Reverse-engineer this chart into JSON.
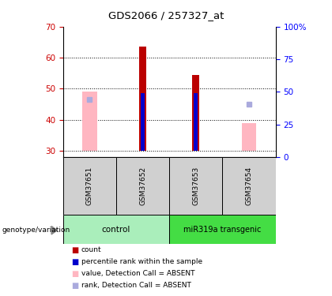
{
  "title": "GDS2066 / 257327_at",
  "samples": [
    "GSM37651",
    "GSM37652",
    "GSM37653",
    "GSM37654"
  ],
  "ylim_left": [
    28,
    70
  ],
  "ylim_right": [
    0,
    100
  ],
  "yticks_left": [
    30,
    40,
    50,
    60,
    70
  ],
  "yticks_right": [
    0,
    25,
    50,
    75,
    100
  ],
  "left_axis_color": "#CC0000",
  "right_axis_color": "#0000FF",
  "bar_bottom": 30,
  "count_bars": [
    null,
    63.5,
    54.5,
    null
  ],
  "count_color": "#BB0000",
  "percentile_bars": [
    null,
    48.5,
    48.5,
    null
  ],
  "percentile_color": "#0000CC",
  "value_absent_bars": [
    49.0,
    null,
    null,
    39.0
  ],
  "value_absent_color": "#FFB6C1",
  "rank_absent_vals": [
    46.5,
    null,
    null,
    45.0
  ],
  "rank_absent_color": "#AAAADD",
  "background_plot": "#FFFFFF",
  "group1_color": "#AAEEBB",
  "group2_color": "#44DD44",
  "legend_items": [
    {
      "label": "count",
      "color": "#BB0000"
    },
    {
      "label": "percentile rank within the sample",
      "color": "#0000CC"
    },
    {
      "label": "value, Detection Call = ABSENT",
      "color": "#FFB6C1"
    },
    {
      "label": "rank, Detection Call = ABSENT",
      "color": "#AAAADD"
    }
  ]
}
